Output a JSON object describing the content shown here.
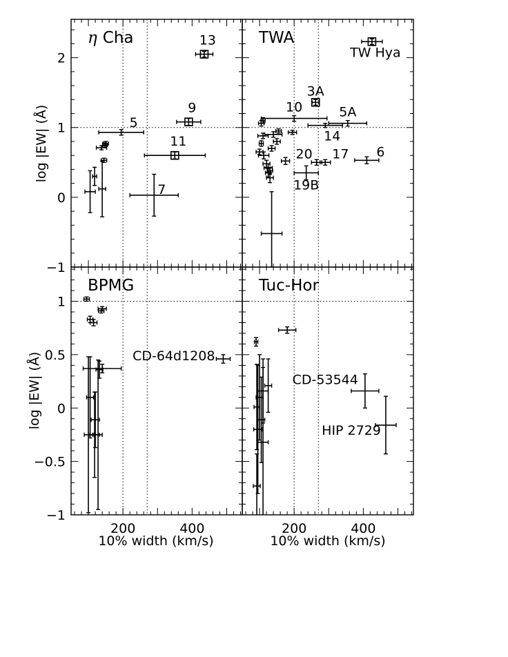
{
  "figure": {
    "xlabel": "10% width (km/s)",
    "ylabel": "log |EW| (Å)",
    "x_tick_labels": [
      "200",
      "400"
    ],
    "top_y_tick_labels": [
      "2",
      "1",
      "0",
      "−1"
    ],
    "bottom_y_tick_labels": [
      "1",
      "0.5",
      "0",
      "−0.5",
      "−1"
    ]
  },
  "chart_data": [
    {
      "type": "scatter",
      "title": "η Cha",
      "xlim": [
        50,
        545
      ],
      "ylim": [
        -1,
        2.55
      ],
      "hlines": [
        1
      ],
      "vlines": [
        200,
        270
      ],
      "points": [
        {
          "x": 435,
          "y": 2.05,
          "xerr": 25,
          "yerr": 0.04,
          "box": true,
          "label": "13"
        },
        {
          "x": 390,
          "y": 1.08,
          "xerr": 35,
          "yerr": 0.05,
          "box": true,
          "label": "9"
        },
        {
          "x": 350,
          "y": 0.6,
          "xerr": 88,
          "yerr": 0.05,
          "box": true,
          "label": "11"
        },
        {
          "x": 195,
          "y": 0.93,
          "xerr": 65,
          "yerr": 0.04,
          "label": "5"
        },
        {
          "x": 290,
          "y": 0.03,
          "xerr": 70,
          "yerr": 0.3,
          "label": "7"
        },
        {
          "x": 150,
          "y": 0.77,
          "xerr": 8,
          "yerr": 0.03
        },
        {
          "x": 148,
          "y": 0.75,
          "xerr": 7,
          "yerr": 0.03
        },
        {
          "x": 138,
          "y": 0.71,
          "xerr": 15,
          "yerr": 0.03
        },
        {
          "x": 145,
          "y": 0.53,
          "xerr": 8,
          "yerr": 0.03
        },
        {
          "x": 118,
          "y": 0.3,
          "xerr": 6,
          "yerr": 0.13
        },
        {
          "x": 140,
          "y": 0.12,
          "xerr": 10,
          "yerr": 0.4
        },
        {
          "x": 105,
          "y": 0.08,
          "xerr": 15,
          "yerr": 0.3
        }
      ]
    },
    {
      "type": "scatter",
      "title": "TWA",
      "xlim": [
        50,
        545
      ],
      "ylim": [
        -1,
        2.55
      ],
      "hlines": [
        1
      ],
      "vlines": [
        200,
        270
      ],
      "points": [
        {
          "x": 425,
          "y": 2.23,
          "xerr": 30,
          "yerr": 0.04,
          "box": true,
          "label": "TW Hya"
        },
        {
          "x": 262,
          "y": 1.36,
          "xerr": 10,
          "yerr": 0.04,
          "box": true,
          "label": "3A"
        },
        {
          "x": 200,
          "y": 1.13,
          "xerr": 95,
          "yerr": 0.04,
          "label": "10"
        },
        {
          "x": 355,
          "y": 1.06,
          "xerr": 55,
          "yerr": 0.04,
          "label": "5A"
        },
        {
          "x": 290,
          "y": 1.03,
          "xerr": 50,
          "yerr": 0.03,
          "label": "14"
        },
        {
          "x": 410,
          "y": 0.53,
          "xerr": 35,
          "yerr": 0.05,
          "label": "6"
        },
        {
          "x": 290,
          "y": 0.5,
          "xerr": 15,
          "yerr": 0.04,
          "label": "17"
        },
        {
          "x": 265,
          "y": 0.5,
          "xerr": 15,
          "yerr": 0.04,
          "label": "20"
        },
        {
          "x": 235,
          "y": 0.35,
          "xerr": 35,
          "yerr": 0.1,
          "label": "19B"
        },
        {
          "x": 110,
          "y": 1.1,
          "xerr": 6,
          "yerr": 0.04
        },
        {
          "x": 105,
          "y": 1.06,
          "xerr": 8,
          "yerr": 0.04
        },
        {
          "x": 155,
          "y": 0.95,
          "xerr": 8,
          "yerr": 0.03
        },
        {
          "x": 195,
          "y": 0.93,
          "xerr": 12,
          "yerr": 0.03
        },
        {
          "x": 140,
          "y": 0.9,
          "xerr": 25,
          "yerr": 0.04
        },
        {
          "x": 110,
          "y": 0.88,
          "xerr": 15,
          "yerr": 0.04
        },
        {
          "x": 150,
          "y": 0.8,
          "xerr": 10,
          "yerr": 0.04
        },
        {
          "x": 105,
          "y": 0.77,
          "xerr": 6,
          "yerr": 0.04
        },
        {
          "x": 135,
          "y": 0.7,
          "xerr": 10,
          "yerr": 0.04
        },
        {
          "x": 100,
          "y": 0.65,
          "xerr": 10,
          "yerr": 0.04
        },
        {
          "x": 112,
          "y": 0.6,
          "xerr": 15,
          "yerr": 0.05
        },
        {
          "x": 175,
          "y": 0.52,
          "xerr": 12,
          "yerr": 0.05
        },
        {
          "x": 120,
          "y": 0.48,
          "xerr": 10,
          "yerr": 0.05
        },
        {
          "x": 125,
          "y": 0.42,
          "xerr": 12,
          "yerr": 0.06
        },
        {
          "x": 130,
          "y": 0.38,
          "xerr": 8,
          "yerr": 0.05
        },
        {
          "x": 125,
          "y": 0.35,
          "xerr": 8,
          "yerr": 0.06
        },
        {
          "x": 130,
          "y": 0.28,
          "xerr": 10,
          "yerr": 0.07
        },
        {
          "x": 135,
          "y": -0.52,
          "xerr": 30,
          "yerr": 0.6
        }
      ]
    },
    {
      "type": "scatter",
      "title": "BPMG",
      "xlim": [
        50,
        545
      ],
      "ylim": [
        -1,
        1.32
      ],
      "hlines": [
        1
      ],
      "vlines": [
        200,
        270
      ],
      "points": [
        {
          "x": 95,
          "y": 1.02,
          "xerr": 8,
          "yerr": 0.02
        },
        {
          "x": 105,
          "y": 0.83,
          "xerr": 8,
          "yerr": 0.03
        },
        {
          "x": 115,
          "y": 0.8,
          "xerr": 10,
          "yerr": 0.03
        },
        {
          "x": 140,
          "y": 0.93,
          "xerr": 12,
          "yerr": 0.02
        },
        {
          "x": 137,
          "y": 0.91,
          "xerr": 8,
          "yerr": 0.02
        },
        {
          "x": 490,
          "y": 0.46,
          "xerr": 20,
          "yerr": 0.04,
          "label": "CD-64d1208"
        },
        {
          "x": 140,
          "y": 0.37,
          "xerr": 55,
          "yerr": 0.04
        },
        {
          "x": 132,
          "y": 0.36,
          "xerr": 10,
          "yerr": 0.08
        },
        {
          "x": 105,
          "y": 0.1,
          "xerr": 10,
          "yerr": 0.38
        },
        {
          "x": 120,
          "y": -0.11,
          "xerr": 12,
          "yerr": 0.26
        },
        {
          "x": 100,
          "y": -0.25,
          "xerr": 12,
          "yerr": 0.73
        },
        {
          "x": 118,
          "y": -0.25,
          "xerr": 14,
          "yerr": 0.4
        },
        {
          "x": 128,
          "y": -0.25,
          "xerr": 12,
          "yerr": 0.7
        }
      ]
    },
    {
      "type": "scatter",
      "title": "Tuc-Hor",
      "xlim": [
        50,
        545
      ],
      "ylim": [
        -1,
        1.32
      ],
      "hlines": [
        1
      ],
      "vlines": [
        200,
        270
      ],
      "points": [
        {
          "x": 90,
          "y": 0.62,
          "xerr": 5,
          "yerr": 0.04
        },
        {
          "x": 180,
          "y": 0.73,
          "xerr": 25,
          "yerr": 0.03
        },
        {
          "x": 405,
          "y": 0.16,
          "xerr": 40,
          "yerr": 0.16,
          "label": "CD-53544"
        },
        {
          "x": 465,
          "y": -0.16,
          "xerr": 30,
          "yerr": 0.27,
          "label": "HIP 2729"
        },
        {
          "x": 125,
          "y": 0.21,
          "xerr": 10,
          "yerr": 0.25
        },
        {
          "x": 110,
          "y": 0.16,
          "xerr": 15,
          "yerr": 0.3
        },
        {
          "x": 100,
          "y": 0.1,
          "xerr": 10,
          "yerr": 0.4
        },
        {
          "x": 92,
          "y": 0.01,
          "xerr": 8,
          "yerr": 0.4
        },
        {
          "x": 105,
          "y": -0.11,
          "xerr": 10,
          "yerr": 0.4
        },
        {
          "x": 95,
          "y": -0.2,
          "xerr": 12,
          "yerr": 0.6
        },
        {
          "x": 110,
          "y": -0.32,
          "xerr": 15,
          "yerr": 0.7
        },
        {
          "x": 92,
          "y": -0.73,
          "xerr": 10,
          "yerr": 0.3
        }
      ]
    }
  ]
}
